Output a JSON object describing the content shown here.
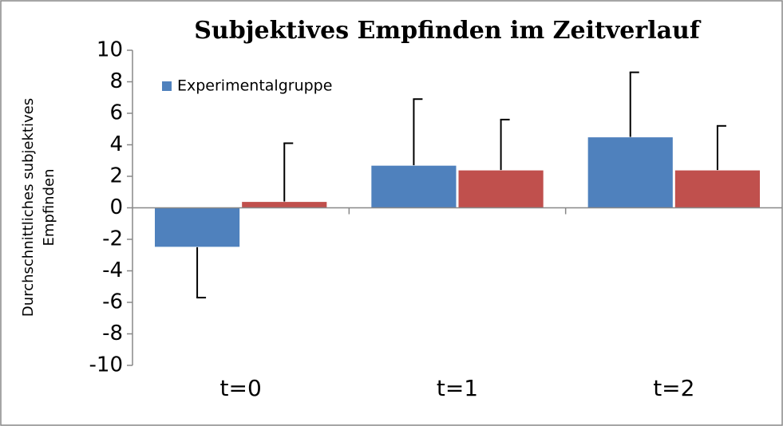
{
  "chart_data": {
    "type": "bar",
    "title": "Subjektives Empfinden im Zeitverlauf",
    "y_label": [
      "Durchschnittliches subjektives",
      "Empfinden"
    ],
    "categories": [
      "t=0",
      "t=1",
      "t=2"
    ],
    "series": [
      {
        "name": "Experimentalgruppe",
        "color": "#4f81bd",
        "values": [
          -2.5,
          2.7,
          4.5
        ],
        "errors": [
          3.2,
          4.2,
          4.1
        ]
      },
      {
        "color": "#c0504d",
        "values": [
          0.4,
          2.4,
          2.4
        ],
        "errors": [
          3.7,
          3.2,
          2.8
        ]
      }
    ],
    "ylim": [
      -10,
      10
    ],
    "yticks": [
      -10,
      -8,
      -6,
      -4,
      -2,
      0,
      2,
      4,
      6,
      8,
      10
    ],
    "legend": "top-left",
    "grid": false
  }
}
